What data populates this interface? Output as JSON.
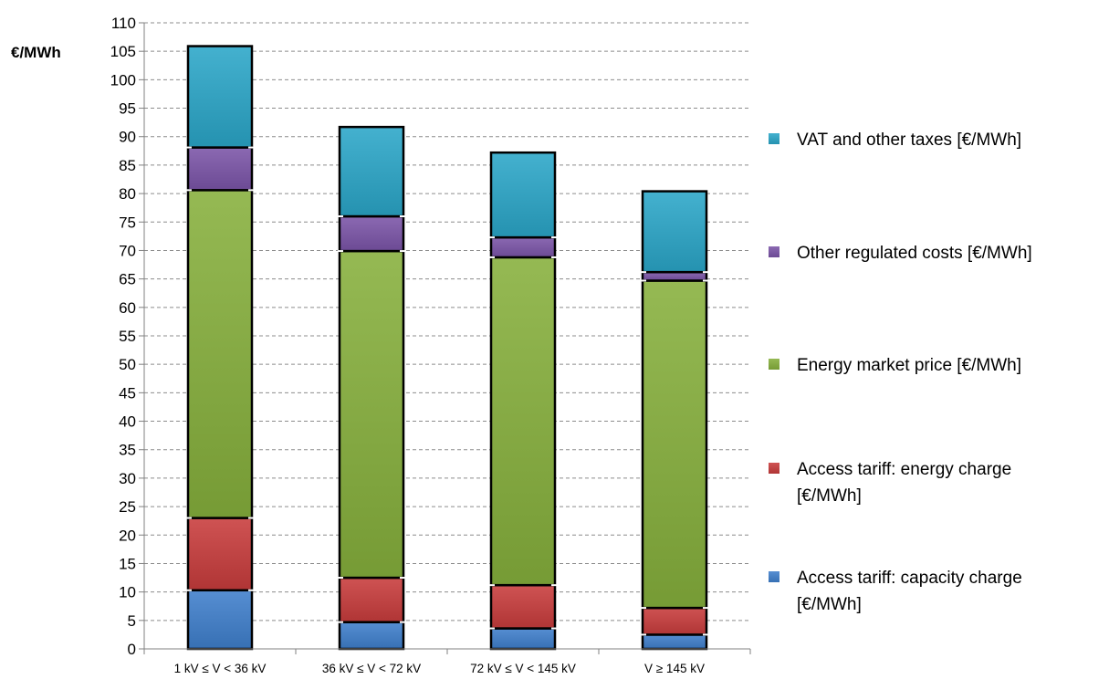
{
  "chart_data": {
    "type": "bar",
    "stacked": true,
    "title": "",
    "xlabel": "",
    "ylabel": "€/MWh",
    "ylim": [
      0,
      110
    ],
    "ytick_step": 5,
    "grid": true,
    "legend_position": "right",
    "categories": [
      "1 kV ≤ V < 36 kV",
      "36 kV ≤ V < 72 kV",
      "72 kV ≤ V < 145 kV",
      "V ≥ 145 kV"
    ],
    "series": [
      {
        "name": "Access tariff: capacity charge [€/MWh]",
        "color": "#3f7fcc",
        "values": [
          10.3,
          4.7,
          3.6,
          2.5
        ]
      },
      {
        "name": "Access tariff: energy charge [€/MWh]",
        "color": "#c83c3c",
        "values": [
          12.7,
          7.8,
          7.6,
          4.7
        ]
      },
      {
        "name": "Energy market price [€/MWh]",
        "color": "#86b03c",
        "values": [
          57.6,
          57.4,
          57.6,
          57.5
        ]
      },
      {
        "name": "Other regulated costs [€/MWh]",
        "color": "#7b54a8",
        "values": [
          7.5,
          6.1,
          3.5,
          1.5
        ]
      },
      {
        "name": "VAT and other taxes [€/MWh]",
        "color": "#2aa6c8",
        "values": [
          17.8,
          15.7,
          14.9,
          14.2
        ]
      }
    ]
  }
}
